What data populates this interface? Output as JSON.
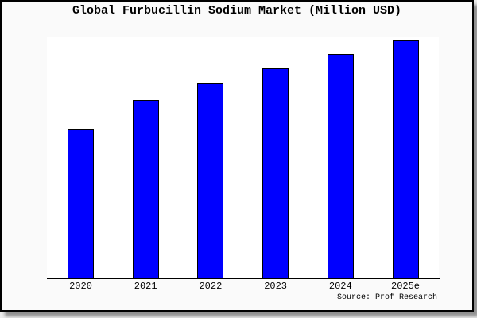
{
  "figure": {
    "title": "Global Furbucillin Sodium Market (Million USD)",
    "source_note": "Source: Prof Research",
    "colors": {
      "canvas_background": "#ececec",
      "figure_background": "#fafafa",
      "frame_border": "#000000",
      "shadow": "#8f8f8f",
      "plot_background": "#ffffff",
      "axis_line": "#000000",
      "bar_fill": "#0000ff",
      "bar_border": "#000000",
      "text": "#000000"
    }
  },
  "chart_data": {
    "type": "bar",
    "title": "Global Furbucillin Sodium Market (Million USD)",
    "categories": [
      "2020",
      "2021",
      "2022",
      "2023",
      "2024",
      "2025e"
    ],
    "values": [
      62,
      74,
      81,
      87,
      93,
      99
    ],
    "unit": "Million USD",
    "xlabel": "",
    "ylabel": "",
    "ylim": [
      0,
      100
    ],
    "y_axis_labels_visible": false,
    "x_tick_marks_visible": false,
    "grid": false,
    "legend": "none",
    "source_note": "Source: Prof Research"
  }
}
